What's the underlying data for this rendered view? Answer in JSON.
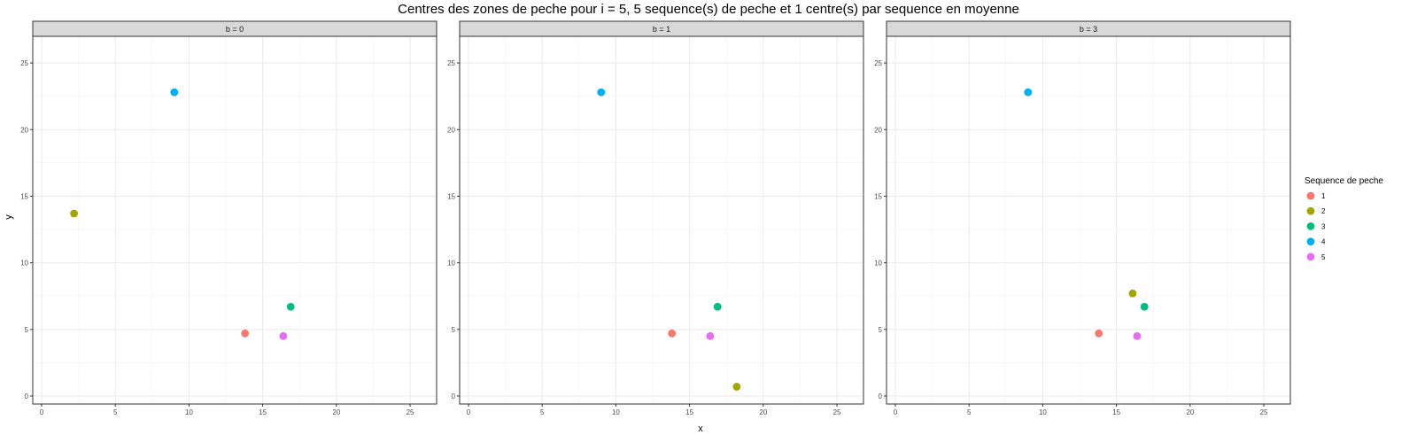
{
  "chart_data": {
    "type": "scatter",
    "title": "Centres des zones de peche pour i = 5, 5 sequence(s) de peche et 1 centre(s) par sequence en moyenne",
    "xlabel": "x",
    "ylabel": "y",
    "xlim": [
      -0.6,
      26.8
    ],
    "ylim": [
      -0.6,
      27
    ],
    "x_ticks": [
      0,
      5,
      10,
      15,
      20,
      25
    ],
    "y_ticks": [
      0,
      5,
      10,
      15,
      20,
      25
    ],
    "grid": true,
    "legend": {
      "title": "Sequence de peche",
      "position": "right",
      "entries": [
        {
          "label": "1",
          "color": "#F8766D"
        },
        {
          "label": "2",
          "color": "#A3A500"
        },
        {
          "label": "3",
          "color": "#00BF7D"
        },
        {
          "label": "4",
          "color": "#00B0F6"
        },
        {
          "label": "5",
          "color": "#E76BF3"
        }
      ]
    },
    "facets": [
      {
        "label": "b = 0",
        "points": [
          {
            "series": "1",
            "x": 13.8,
            "y": 4.7
          },
          {
            "series": "2",
            "x": 2.2,
            "y": 13.7
          },
          {
            "series": "3",
            "x": 16.9,
            "y": 6.7
          },
          {
            "series": "4",
            "x": 9.0,
            "y": 22.8
          },
          {
            "series": "5",
            "x": 16.4,
            "y": 4.5
          }
        ]
      },
      {
        "label": "b = 1",
        "points": [
          {
            "series": "1",
            "x": 13.8,
            "y": 4.7
          },
          {
            "series": "2",
            "x": 18.2,
            "y": 0.7
          },
          {
            "series": "3",
            "x": 16.9,
            "y": 6.7
          },
          {
            "series": "4",
            "x": 9.0,
            "y": 22.8
          },
          {
            "series": "5",
            "x": 16.4,
            "y": 4.5
          }
        ]
      },
      {
        "label": "b = 3",
        "points": [
          {
            "series": "1",
            "x": 13.8,
            "y": 4.7
          },
          {
            "series": "2",
            "x": 16.1,
            "y": 7.7
          },
          {
            "series": "3",
            "x": 16.9,
            "y": 6.7
          },
          {
            "series": "4",
            "x": 9.0,
            "y": 22.8
          },
          {
            "series": "5",
            "x": 16.4,
            "y": 4.5
          }
        ]
      }
    ]
  }
}
